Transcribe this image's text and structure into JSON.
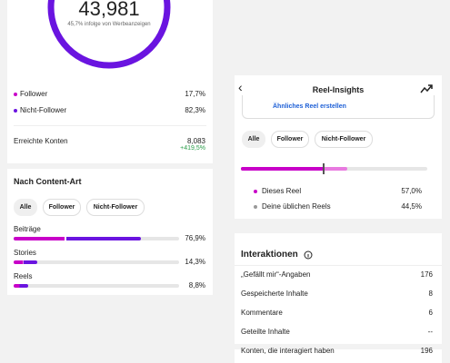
{
  "reach": {
    "total": "43,981",
    "ads_note": "45,7% infolge von Werbeanzeigen"
  },
  "audience": [
    {
      "label": "Follower",
      "value": "17,7%"
    },
    {
      "label": "Nicht-Follower",
      "value": "82,3%"
    }
  ],
  "accounts": {
    "label": "Erreichte Konten",
    "value": "8,083",
    "change": "+419,5%"
  },
  "content": {
    "title": "Nach Content-Art",
    "filters": [
      "Alle",
      "Follower",
      "Nicht-Follower"
    ],
    "items": [
      {
        "label": "Beiträge",
        "value": 76.9,
        "value_label": "76,9%"
      },
      {
        "label": "Stories",
        "value": 14.3,
        "value_label": "14,3%"
      },
      {
        "label": "Reels",
        "value": 8.8,
        "value_label": "8,8%"
      }
    ]
  },
  "reel": {
    "title": "Reel-Insights",
    "link": "Ähnliches Reel erstellen",
    "filters": [
      "Alle",
      "Follower",
      "Nicht-Follower"
    ],
    "legend": [
      {
        "label": "Dieses Reel",
        "value": 57.0,
        "value_label": "57,0%"
      },
      {
        "label": "Deine üblichen Reels",
        "value": 44.5,
        "value_label": "44,5%"
      }
    ]
  },
  "interactions": {
    "title": "Interaktionen",
    "rows": [
      [
        "„Gefällt mir“-Angaben",
        "176"
      ],
      [
        "Gespeicherte Inhalte",
        "8"
      ],
      [
        "Kommentare",
        "6"
      ],
      [
        "Geteilte Inhalte",
        "--"
      ],
      [
        "Konten, die interagiert haben",
        "196"
      ]
    ]
  }
}
